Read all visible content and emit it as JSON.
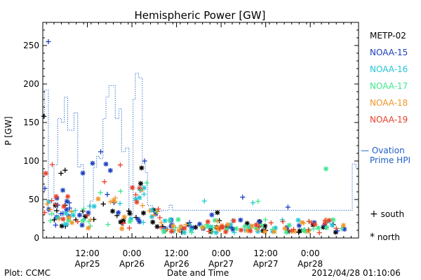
{
  "chart_data": {
    "type": "scatter",
    "title": "Hemispheric Power [GW]",
    "ylabel": "P [GW]",
    "xlabel": "Date and Time",
    "ylim": [
      0,
      280
    ],
    "y_ticks": [
      0,
      50,
      100,
      150,
      200,
      250
    ],
    "x_range_hours": [
      -12,
      73
    ],
    "x_ticks": [
      {
        "h": 0,
        "time": "12:00",
        "date": "Apr25"
      },
      {
        "h": 12,
        "time": "0:00",
        "date": "Apr26"
      },
      {
        "h": 24,
        "time": "12:00",
        "date": "Apr26"
      },
      {
        "h": 36,
        "time": "0:00",
        "date": "Apr27"
      },
      {
        "h": 48,
        "time": "12:00",
        "date": "Apr27"
      },
      {
        "h": 60,
        "time": "0:00",
        "date": "Apr28"
      }
    ],
    "series": [
      {
        "name": "METP-02",
        "color": "#000000",
        "seed": 11
      },
      {
        "name": "NOAA-15",
        "color": "#1a3fbf",
        "seed": 23
      },
      {
        "name": "NOAA-16",
        "color": "#22c6d8",
        "seed": 37
      },
      {
        "name": "NOAA-17",
        "color": "#3ee88e",
        "seed": 41
      },
      {
        "name": "NOAA-18",
        "color": "#f0962a",
        "seed": 53
      },
      {
        "name": "NOAA-19",
        "color": "#e8402a",
        "seed": 67
      }
    ],
    "ovation": {
      "name": "Ovation Prime HPI",
      "label_line1": "— Ovation",
      "label_line2": "Prime HPI",
      "color": "#1f5fc6",
      "steps": [
        [
          -12,
          155
        ],
        [
          -11.5,
          192
        ],
        [
          -10.5,
          30
        ],
        [
          -9,
          95
        ],
        [
          -8,
          155
        ],
        [
          -7,
          150
        ],
        [
          -6.2,
          183
        ],
        [
          -5.3,
          140
        ],
        [
          -4.3,
          140
        ],
        [
          -3.6,
          163
        ],
        [
          -2.6,
          92
        ],
        [
          -1.8,
          95
        ],
        [
          -1,
          30
        ],
        [
          0,
          35
        ],
        [
          0.8,
          48
        ],
        [
          1.6,
          92
        ],
        [
          2.5,
          106
        ],
        [
          3.2,
          103
        ],
        [
          4.2,
          155
        ],
        [
          5,
          183
        ],
        [
          5.8,
          198
        ],
        [
          7.5,
          155
        ],
        [
          8.5,
          168
        ],
        [
          9.2,
          112
        ],
        [
          10.2,
          117
        ],
        [
          11.2,
          30
        ],
        [
          12.3,
          180
        ],
        [
          12.9,
          214
        ],
        [
          13.8,
          208
        ],
        [
          14.8,
          97
        ],
        [
          15.6,
          85
        ],
        [
          16.2,
          42
        ],
        [
          17.5,
          35
        ],
        [
          20,
          36
        ],
        [
          22,
          43
        ],
        [
          22.8,
          36
        ],
        [
          71,
          36
        ],
        [
          71.3,
          96
        ],
        [
          72.3,
          90
        ]
      ]
    },
    "symbol_legend": [
      {
        "symbol": "+",
        "label": "south"
      },
      {
        "symbol": "*",
        "label": "north"
      }
    ]
  },
  "footer": {
    "left": "Plot: CCMC",
    "center": "Date and Time",
    "right": "2012/04/28 01:10:06"
  }
}
